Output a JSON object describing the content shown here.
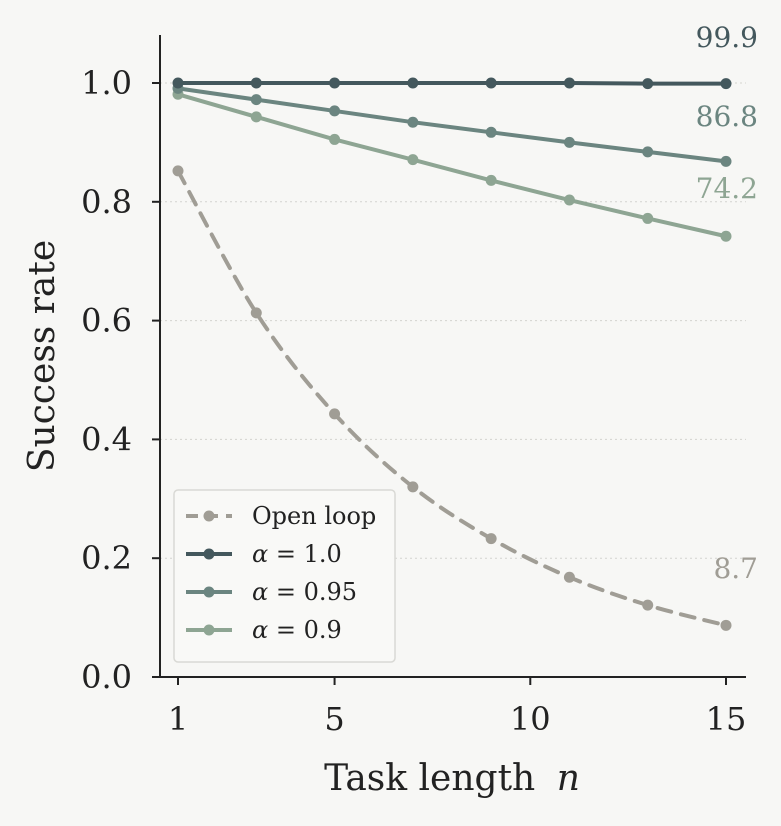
{
  "chart_data": {
    "type": "line",
    "title": "",
    "xlabel_main": "Task length",
    "xlabel_var": "n",
    "ylabel": "Success rate",
    "xlim": [
      0.5,
      15.5
    ],
    "ylim": [
      0,
      1.08
    ],
    "xticks": [
      1,
      5,
      10,
      15
    ],
    "xtick_labels": [
      "1",
      "5",
      "10",
      "15"
    ],
    "yticks": [
      0,
      0.2,
      0.4,
      0.6,
      0.8,
      1.0
    ],
    "ytick_labels": [
      "0.0",
      "0.2",
      "0.4",
      "0.6",
      "0.8",
      "1.0"
    ],
    "grid": "horizontal dotted",
    "legend_position": "lower-left",
    "x": [
      1,
      3,
      5,
      7,
      9,
      11,
      13,
      15
    ],
    "series": [
      {
        "name": "Open loop",
        "color": "#a09d95",
        "style": "dashed",
        "values": [
          0.852,
          0.613,
          0.443,
          0.32,
          0.233,
          0.168,
          0.121,
          0.087
        ],
        "end_label": "8.7"
      },
      {
        "name": "α = 1.0",
        "color": "#44585d",
        "style": "solid",
        "values": [
          1.0,
          1.0,
          1.0,
          1.0,
          1.0,
          1.0,
          0.999,
          0.999
        ],
        "end_label": "99.9"
      },
      {
        "name": "α = 0.95",
        "color": "#6b8580",
        "style": "solid",
        "values": [
          0.991,
          0.972,
          0.953,
          0.934,
          0.917,
          0.9,
          0.884,
          0.868
        ],
        "end_label": "86.8"
      },
      {
        "name": "α = 0.9",
        "color": "#8ea593",
        "style": "solid",
        "values": [
          0.981,
          0.943,
          0.905,
          0.871,
          0.836,
          0.803,
          0.772,
          0.742
        ],
        "end_label": "74.2"
      }
    ],
    "legend_order": [
      0,
      1,
      2,
      3
    ]
  }
}
